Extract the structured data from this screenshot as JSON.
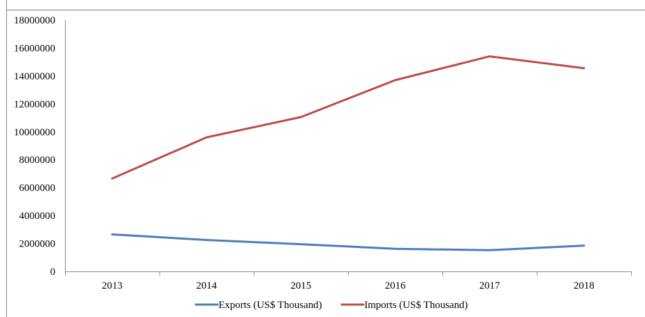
{
  "chart_data": {
    "type": "line",
    "title": "",
    "xlabel": "",
    "ylabel": "",
    "categories": [
      "2013",
      "2014",
      "2015",
      "2016",
      "2017",
      "2018"
    ],
    "ylim": [
      0,
      18000000
    ],
    "yticks": [
      0,
      2000000,
      4000000,
      6000000,
      8000000,
      10000000,
      12000000,
      14000000,
      16000000,
      18000000
    ],
    "ytick_labels": [
      "0",
      "2000000",
      "4000000",
      "6000000",
      "8000000",
      "10000000",
      "12000000",
      "14000000",
      "16000000",
      "18000000"
    ],
    "grid": false,
    "legend_position": "bottom",
    "series": [
      {
        "name": "Exports (US$ Thousand)",
        "color": "#4a7ebb",
        "values": [
          2650000,
          2250000,
          1950000,
          1620000,
          1520000,
          1850000
        ]
      },
      {
        "name": "Imports (US$ Thousand)",
        "color": "#be4b48",
        "values": [
          6650000,
          9600000,
          11050000,
          13700000,
          15400000,
          14550000
        ]
      }
    ]
  }
}
